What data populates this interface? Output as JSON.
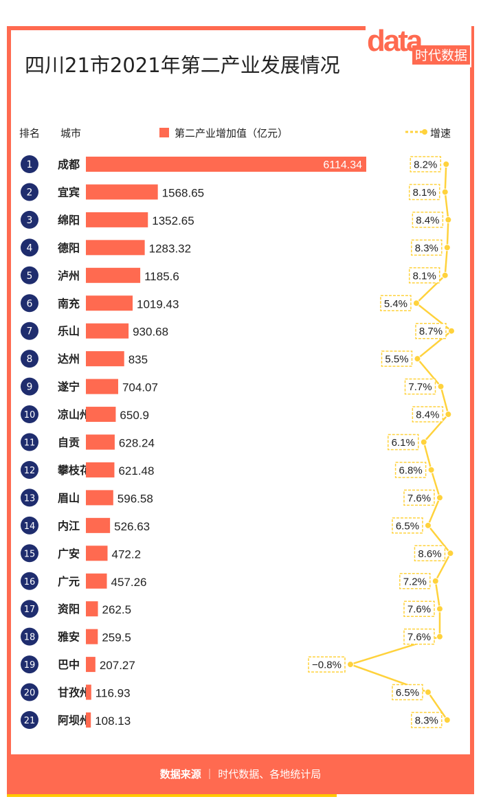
{
  "title": "四川21市2021年第二产业发展情况",
  "brand": {
    "logo_word": "data",
    "name": "时代数据"
  },
  "header": {
    "rank": "排名",
    "city": "城市",
    "legend_bar": "第二产业增加值（亿元）",
    "legend_line": "增速"
  },
  "footer": {
    "label": "数据来源",
    "source": "时代数据、各地统计局"
  },
  "colors": {
    "bar": "#ff6a50",
    "rank_circle": "#1f2d6e",
    "line": "#ffd23c",
    "frame": "#ff6a50"
  },
  "chart_data": {
    "type": "bar",
    "title": "四川21市2021年第二产业发展情况",
    "orientation": "horizontal",
    "categories": [
      "成都",
      "宜宾",
      "绵阳",
      "德阳",
      "泸州",
      "南充",
      "乐山",
      "达州",
      "遂宁",
      "凉山州",
      "自贡",
      "攀枝花",
      "眉山",
      "内江",
      "广安",
      "广元",
      "资阳",
      "雅安",
      "巴中",
      "甘孜州",
      "阿坝州"
    ],
    "ranks": [
      "1",
      "2",
      "3",
      "4",
      "5",
      "6",
      "7",
      "8",
      "9",
      "10",
      "11",
      "12",
      "13",
      "14",
      "15",
      "16",
      "17",
      "18",
      "19",
      "20",
      "21"
    ],
    "series": [
      {
        "name": "第二产业增加值（亿元）",
        "values": [
          6114.34,
          1568.65,
          1352.65,
          1283.32,
          1185.6,
          1019.43,
          930.68,
          835,
          704.07,
          650.9,
          628.24,
          621.48,
          596.58,
          526.63,
          472.2,
          457.26,
          262.5,
          259.5,
          207.27,
          116.93,
          108.13
        ],
        "labels": [
          "6114.34",
          "1568.65",
          "1352.65",
          "1283.32",
          "1185.6",
          "1019.43",
          "930.68",
          "835",
          "704.07",
          "650.9",
          "628.24",
          "621.48",
          "596.58",
          "526.63",
          "472.2",
          "457.26",
          "262.5",
          "259.5",
          "207.27",
          "116.93",
          "108.13"
        ]
      },
      {
        "name": "增速",
        "type": "line",
        "values": [
          8.2,
          8.1,
          8.4,
          8.3,
          8.1,
          5.4,
          8.7,
          5.5,
          7.7,
          8.4,
          6.1,
          6.8,
          7.6,
          6.5,
          8.6,
          7.2,
          7.6,
          7.6,
          -0.8,
          6.5,
          8.3
        ],
        "labels": [
          "8.2%",
          "8.1%",
          "8.4%",
          "8.3%",
          "8.1%",
          "5.4%",
          "8.7%",
          "5.5%",
          "7.7%",
          "8.4%",
          "6.1%",
          "6.8%",
          "7.6%",
          "6.5%",
          "8.6%",
          "7.2%",
          "7.6%",
          "7.6%",
          "−0.8%",
          "6.5%",
          "8.3%"
        ]
      }
    ]
  }
}
